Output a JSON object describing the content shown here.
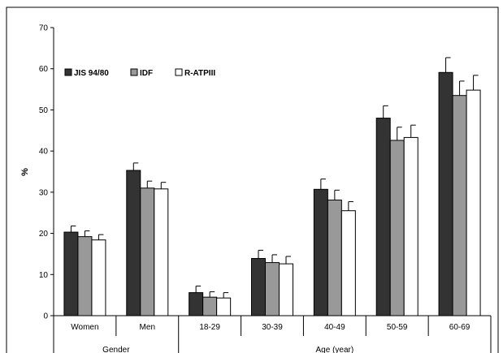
{
  "chart_data": {
    "type": "bar",
    "ylabel": "%",
    "ylim": [
      0,
      70
    ],
    "yticks": [
      0,
      10,
      20,
      30,
      40,
      50,
      60,
      70
    ],
    "categories": [
      "Women",
      "Men",
      "18-29",
      "30-39",
      "40-49",
      "50-59",
      "60-69"
    ],
    "groups": [
      {
        "label": "Gender",
        "categories": [
          "Women",
          "Men"
        ]
      },
      {
        "label": "Age (year)",
        "categories": [
          "18-29",
          "30-39",
          "40-49",
          "50-59",
          "60-69"
        ]
      }
    ],
    "series": [
      {
        "name": "JIS 94/80",
        "color": "#333333",
        "values": [
          20.3,
          35.3,
          5.6,
          13.9,
          30.7,
          48.0,
          59.1
        ],
        "errors": [
          1.5,
          1.8,
          1.6,
          2.0,
          2.5,
          3.0,
          3.6
        ]
      },
      {
        "name": "IDF",
        "color": "#999999",
        "values": [
          19.2,
          31.0,
          4.5,
          12.9,
          28.1,
          42.6,
          53.5
        ],
        "errors": [
          1.4,
          1.7,
          1.3,
          1.9,
          2.4,
          3.2,
          3.5
        ]
      },
      {
        "name": "R-ATPIII",
        "color": "#ffffff",
        "values": [
          18.4,
          30.8,
          4.3,
          12.6,
          25.5,
          43.3,
          54.8
        ],
        "errors": [
          1.3,
          1.6,
          1.3,
          1.8,
          2.2,
          3.0,
          3.6
        ]
      }
    ],
    "legend_position": "top-left",
    "grid": false
  }
}
